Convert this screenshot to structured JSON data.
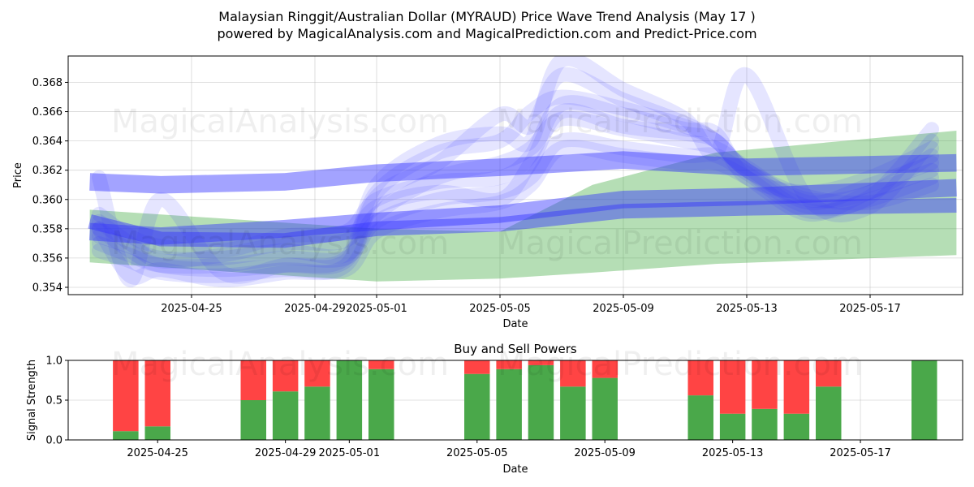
{
  "title_line1": "Malaysian Ringgit/Australian Dollar (MYRAUD) Price Wave Trend Analysis (May 17 )",
  "title_line2": "powered by MagicalAnalysis.com and MagicalPrediction.com and Predict-Price.com",
  "watermarks": [
    "MagicalAnalysis.com",
    "MagicalPrediction.com"
  ],
  "colors": {
    "green": "#2ca02c",
    "blue": "#3333ff",
    "buy": "#4aa84a",
    "sell": "#ff4444"
  },
  "chart_data": [
    {
      "type": "line",
      "title": "",
      "xlabel": "Date",
      "ylabel": "Price",
      "xlim": [
        "2025-04-21",
        "2025-05-20"
      ],
      "ylim": [
        0.3535,
        0.3698
      ],
      "x_ticks": [
        "2025-04-25",
        "2025-04-29",
        "2025-05-01",
        "2025-05-05",
        "2025-05-09",
        "2025-05-13",
        "2025-05-17"
      ],
      "y_ticks": [
        0.354,
        0.356,
        0.358,
        0.36,
        0.362,
        0.364,
        0.366,
        0.368
      ],
      "grid": true,
      "green_bands": [
        {
          "x": [
            "2025-04-21.7",
            "2025-05-01",
            "2025-05-05",
            "2025-05-08",
            "2025-05-12",
            "2025-05-19.8"
          ],
          "upper": [
            0.3593,
            0.358,
            0.3578,
            0.361,
            0.3632,
            0.3647
          ],
          "lower": [
            0.3557,
            0.3544,
            0.3546,
            0.355,
            0.3556,
            0.3562
          ]
        }
      ],
      "blue_bands": [
        {
          "x": [
            "2025-04-21.7",
            "2025-04-24",
            "2025-04-28",
            "2025-05-01",
            "2025-05-05",
            "2025-05-09",
            "2025-05-13",
            "2025-05-19.8"
          ],
          "values": [
            0.3612,
            0.361,
            0.3612,
            0.3618,
            0.3622,
            0.3627,
            0.3622,
            0.3625
          ],
          "width": 0.0012
        },
        {
          "x": [
            "2025-04-21.7",
            "2025-04-24",
            "2025-04-28",
            "2025-05-01",
            "2025-05-05",
            "2025-05-09",
            "2025-05-13",
            "2025-05-19.8"
          ],
          "values": [
            0.3578,
            0.3575,
            0.358,
            0.3585,
            0.359,
            0.36,
            0.3602,
            0.3608
          ],
          "width": 0.0012
        },
        {
          "x": [
            "2025-04-21.7",
            "2025-04-24",
            "2025-04-28",
            "2025-05-01",
            "2025-05-05",
            "2025-05-09",
            "2025-05-13",
            "2025-05-19.8"
          ],
          "values": [
            0.3585,
            0.3573,
            0.3572,
            0.358,
            0.3583,
            0.3592,
            0.3594,
            0.3596
          ],
          "width": 0.001
        }
      ],
      "blue_waves": [
        {
          "x": [
            "2025-04-22",
            "2025-04-23",
            "2025-04-24",
            "2025-04-26",
            "2025-04-28",
            "2025-04-30",
            "2025-05-01",
            "2025-05-03",
            "2025-05-05",
            "2025-05-06",
            "2025-05-07",
            "2025-05-09",
            "2025-05-11",
            "2025-05-12",
            "2025-05-13",
            "2025-05-15",
            "2025-05-17",
            "2025-05-19"
          ],
          "values": [
            0.358,
            0.3565,
            0.3555,
            0.3552,
            0.3555,
            0.3558,
            0.3605,
            0.3632,
            0.364,
            0.366,
            0.367,
            0.3662,
            0.365,
            0.364,
            0.362,
            0.36,
            0.3605,
            0.363
          ]
        },
        {
          "x": [
            "2025-04-22",
            "2025-04-23",
            "2025-04-24",
            "2025-04-26",
            "2025-04-28",
            "2025-04-30",
            "2025-05-01",
            "2025-05-03",
            "2025-05-05",
            "2025-05-06",
            "2025-05-07",
            "2025-05-09",
            "2025-05-11",
            "2025-05-12",
            "2025-05-13",
            "2025-05-15",
            "2025-05-17",
            "2025-05-19"
          ],
          "values": [
            0.3575,
            0.3568,
            0.356,
            0.356,
            0.3565,
            0.3562,
            0.359,
            0.3615,
            0.3625,
            0.3635,
            0.3655,
            0.3648,
            0.364,
            0.3635,
            0.3622,
            0.3598,
            0.361,
            0.3625
          ]
        },
        {
          "x": [
            "2025-04-22",
            "2025-04-23",
            "2025-04-24",
            "2025-04-26",
            "2025-04-28",
            "2025-04-30",
            "2025-05-01",
            "2025-05-03",
            "2025-05-05",
            "2025-05-06",
            "2025-05-07",
            "2025-05-09",
            "2025-05-11",
            "2025-05-12",
            "2025-05-13",
            "2025-05-15",
            "2025-05-17",
            "2025-05-19"
          ],
          "values": [
            0.357,
            0.3562,
            0.3555,
            0.3555,
            0.356,
            0.356,
            0.3585,
            0.36,
            0.3605,
            0.3615,
            0.364,
            0.3635,
            0.363,
            0.363,
            0.3618,
            0.3592,
            0.36,
            0.3615
          ]
        },
        {
          "x": [
            "2025-04-22",
            "2025-04-23",
            "2025-04-24",
            "2025-04-26",
            "2025-04-28",
            "2025-04-30",
            "2025-05-01",
            "2025-05-03",
            "2025-05-05",
            "2025-05-06",
            "2025-05-07",
            "2025-05-09",
            "2025-05-11",
            "2025-05-12",
            "2025-05-13",
            "2025-05-15",
            "2025-05-17",
            "2025-05-19"
          ],
          "values": [
            0.3585,
            0.357,
            0.3558,
            0.3562,
            0.357,
            0.3572,
            0.3595,
            0.3605,
            0.36,
            0.3625,
            0.366,
            0.365,
            0.3645,
            0.364,
            0.362,
            0.3602,
            0.3598,
            0.361
          ]
        },
        {
          "x": [
            "2025-04-22",
            "2025-04-23",
            "2025-04-24",
            "2025-04-26",
            "2025-04-28",
            "2025-04-30",
            "2025-05-01",
            "2025-05-03",
            "2025-05-05",
            "2025-05-06",
            "2025-05-07",
            "2025-05-09",
            "2025-05-11",
            "2025-05-12",
            "2025-05-13",
            "2025-05-15",
            "2025-05-17",
            "2025-05-19"
          ],
          "values": [
            0.359,
            0.3575,
            0.3568,
            0.3565,
            0.3575,
            0.3578,
            0.36,
            0.3612,
            0.3615,
            0.363,
            0.3665,
            0.3658,
            0.3648,
            0.3645,
            0.3615,
            0.3605,
            0.3615,
            0.3635
          ]
        },
        {
          "x": [
            "2025-04-22",
            "2025-04-23",
            "2025-04-24",
            "2025-04-26",
            "2025-04-28",
            "2025-04-30",
            "2025-05-01",
            "2025-05-03",
            "2025-05-05",
            "2025-05-06",
            "2025-05-07",
            "2025-05-09",
            "2025-05-11",
            "2025-05-12",
            "2025-05-13",
            "2025-05-15",
            "2025-05-17",
            "2025-05-19"
          ],
          "values": [
            0.3565,
            0.3558,
            0.355,
            0.3548,
            0.3552,
            0.3552,
            0.3578,
            0.3592,
            0.3598,
            0.361,
            0.3635,
            0.363,
            0.3625,
            0.3625,
            0.3615,
            0.359,
            0.3605,
            0.362
          ]
        },
        {
          "x": [
            "2025-04-22",
            "2025-04-23",
            "2025-04-24",
            "2025-04-26",
            "2025-04-28",
            "2025-04-30",
            "2025-05-01",
            "2025-05-03",
            "2025-05-05",
            "2025-05-06",
            "2025-05-07",
            "2025-05-09",
            "2025-05-11",
            "2025-05-12",
            "2025-05-13",
            "2025-05-15",
            "2025-05-17",
            "2025-05-19"
          ],
          "values": [
            0.3615,
            0.3545,
            0.36,
            0.355,
            0.3555,
            0.356,
            0.361,
            0.3638,
            0.3645,
            0.364,
            0.3695,
            0.3675,
            0.3655,
            0.3632,
            0.3685,
            0.36,
            0.3595,
            0.364
          ]
        },
        {
          "x": [
            "2025-04-22",
            "2025-04-23",
            "2025-04-24",
            "2025-04-26",
            "2025-04-28",
            "2025-04-30",
            "2025-05-01",
            "2025-05-03",
            "2025-05-05",
            "2025-05-06",
            "2025-05-07",
            "2025-05-09",
            "2025-05-11",
            "2025-05-12",
            "2025-05-13",
            "2025-05-15",
            "2025-05-17",
            "2025-05-19"
          ],
          "values": [
            0.358,
            0.3548,
            0.3552,
            0.3545,
            0.355,
            0.3555,
            0.3602,
            0.3625,
            0.3658,
            0.365,
            0.3685,
            0.3668,
            0.3652,
            0.364,
            0.362,
            0.3595,
            0.3602,
            0.3648
          ]
        }
      ]
    },
    {
      "type": "bar",
      "title": "Buy and Sell Powers",
      "xlabel": "Date",
      "ylabel": "Signal Strength",
      "ylim": [
        0,
        1.0
      ],
      "y_ticks": [
        0.0,
        0.5,
        1.0
      ],
      "y_tick_labels": [
        "0.0",
        "0.5",
        "1.0"
      ],
      "x_ticks": [
        "2025-04-25",
        "2025-04-29",
        "2025-05-01",
        "2025-05-05",
        "2025-05-09",
        "2025-05-13",
        "2025-05-17"
      ],
      "grid": true,
      "bars": [
        {
          "date": "2025-04-24",
          "buy": 0.11
        },
        {
          "date": "2025-04-25",
          "buy": 0.17
        },
        {
          "date": "2025-04-28",
          "buy": 0.5
        },
        {
          "date": "2025-04-29",
          "buy": 0.61
        },
        {
          "date": "2025-04-30",
          "buy": 0.67
        },
        {
          "date": "2025-05-01",
          "buy": 1.0
        },
        {
          "date": "2025-05-02",
          "buy": 0.89
        },
        {
          "date": "2025-05-05",
          "buy": 0.83
        },
        {
          "date": "2025-05-06",
          "buy": 0.89
        },
        {
          "date": "2025-05-07",
          "buy": 0.94
        },
        {
          "date": "2025-05-08",
          "buy": 0.67
        },
        {
          "date": "2025-05-09",
          "buy": 0.78
        },
        {
          "date": "2025-05-12",
          "buy": 0.56
        },
        {
          "date": "2025-05-13",
          "buy": 0.33
        },
        {
          "date": "2025-05-14",
          "buy": 0.39
        },
        {
          "date": "2025-05-15",
          "buy": 0.33
        },
        {
          "date": "2025-05-16",
          "buy": 0.67
        },
        {
          "date": "2025-05-19",
          "buy": 1.0
        }
      ]
    }
  ]
}
